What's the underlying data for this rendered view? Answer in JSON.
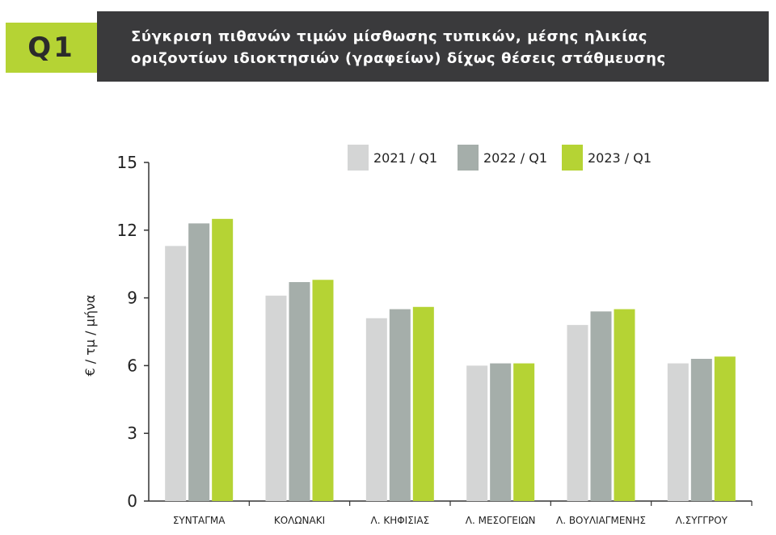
{
  "header": {
    "badge": "Q1",
    "title_line1": "Σύγκριση πιθανών τιμών μίσθωσης τυπικών, μέσης ηλικίας",
    "title_line2": "οριζοντίων ιδιοκτησιών (γραφείων) δίχως θέσεις στάθμευσης"
  },
  "chart_data": {
    "type": "bar",
    "title": "Σύγκριση πιθανών τιμών μίσθωσης τυπικών, μέσης ηλικίας οριζοντίων ιδιοκτησιών (γραφείων) δίχως θέσεις στάθμευσης",
    "xlabel": "",
    "ylabel": "€ / τμ / μήνα",
    "ylim": [
      0,
      15
    ],
    "yticks": [
      0,
      3,
      6,
      9,
      12,
      15
    ],
    "grid": false,
    "legend_position": "top-right",
    "categories": [
      "ΣΥΝΤΑΓΜΑ",
      "ΚΟΛΩΝΑΚΙ",
      "Λ. ΚΗΦΙΣΙΑΣ",
      "Λ. ΜΕΣΟΓΕΙΩΝ",
      "Λ. ΒΟΥΛΙΑΓΜΕΝΗΣ",
      "Λ.ΣΥΓΓΡΟΥ"
    ],
    "series": [
      {
        "name": "2021 / Q1",
        "color": "#d4d5d5",
        "values": [
          11.3,
          9.1,
          8.1,
          6.0,
          7.8,
          6.1
        ]
      },
      {
        "name": "2022 / Q1",
        "color": "#a5aeaa",
        "values": [
          12.3,
          9.7,
          8.5,
          6.1,
          8.4,
          6.3
        ]
      },
      {
        "name": "2023 / Q1",
        "color": "#b5d334",
        "values": [
          12.5,
          9.8,
          8.6,
          6.1,
          8.5,
          6.4
        ]
      }
    ]
  }
}
